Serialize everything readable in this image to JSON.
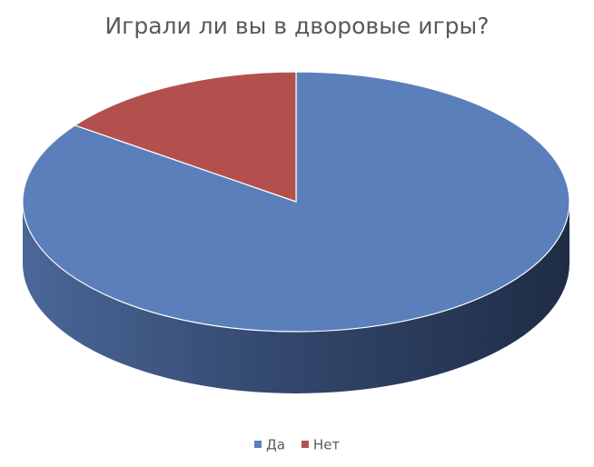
{
  "chart_data": {
    "type": "pie",
    "title": "Играли ли вы в дворовые игры?",
    "categories": [
      "Да",
      "Нет"
    ],
    "values": [
      85,
      15
    ],
    "colors": [
      "#5a7fbb",
      "#b3504d"
    ],
    "legend": "bottom"
  }
}
